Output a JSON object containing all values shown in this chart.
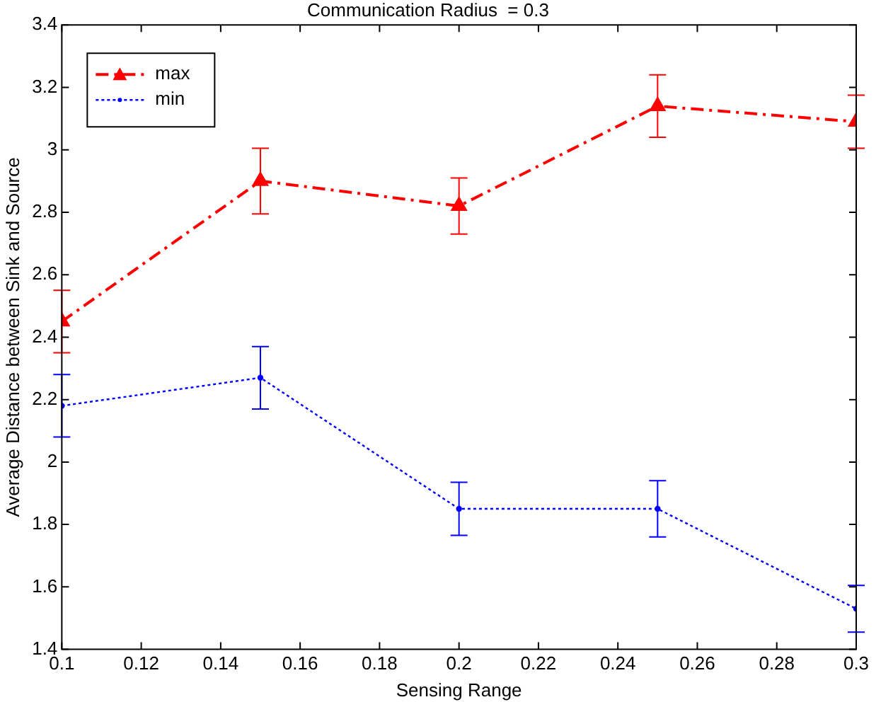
{
  "chart_data": {
    "type": "line",
    "title": "Communication Radius  = 0.3",
    "xlabel": "Sensing Range",
    "ylabel": "Average Distance between Sink and Source",
    "x": [
      0.1,
      0.15,
      0.2,
      0.25,
      0.3
    ],
    "series": [
      {
        "name": "max",
        "color": "#ff0000",
        "values": [
          2.45,
          2.9,
          2.82,
          3.14,
          3.09
        ],
        "errors": [
          0.1,
          0.105,
          0.09,
          0.1,
          0.085
        ],
        "marker": "triangle",
        "line_style": "dashed"
      },
      {
        "name": "min",
        "color": "#0000ff",
        "values": [
          2.18,
          2.27,
          1.85,
          1.85,
          1.53
        ],
        "errors": [
          0.1,
          0.1,
          0.085,
          0.09,
          0.075
        ],
        "marker": "circle",
        "line_style": "dotted"
      }
    ],
    "xlim": [
      0.1,
      0.3
    ],
    "xticks": [
      0.1,
      0.12,
      0.14,
      0.16,
      0.18,
      0.2,
      0.22,
      0.24,
      0.26,
      0.28,
      0.3
    ],
    "ylim": [
      1.4,
      3.4
    ],
    "yticks": [
      1.4,
      1.6,
      1.8,
      2,
      2.2,
      2.4,
      2.6,
      2.8,
      3,
      3.2,
      3.4
    ],
    "grid": false,
    "legend": "top left"
  }
}
